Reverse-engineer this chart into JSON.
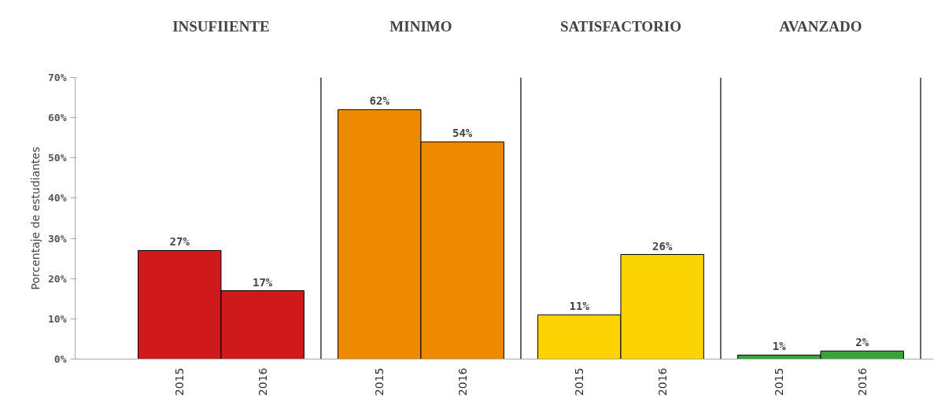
{
  "chart_data": {
    "type": "bar",
    "ylabel": "Porcentaje de estudiantes",
    "categories": [
      "2015",
      "2016",
      "2015",
      "2016",
      "2015",
      "2016",
      "2015",
      "2016"
    ],
    "values": [
      27,
      17,
      62,
      54,
      11,
      26,
      1,
      2
    ],
    "colors": [
      "#d0191a",
      "#d0191a",
      "#ee8a00",
      "#ee8a00",
      "#fcd303",
      "#fcd303",
      "#3aa23c",
      "#3aa23c"
    ],
    "value_labels": [
      "27%",
      "17%",
      "62%",
      "54%",
      "11%",
      "26%",
      "1%",
      "2%"
    ],
    "annotations": [
      "INSUFIIENTE",
      "MINIMO",
      "SATISFACTORIO",
      "AVANZADO"
    ],
    "ylim": [
      0,
      70
    ],
    "yticks": [
      {
        "value": 0,
        "label": "0%"
      },
      {
        "value": 10,
        "label": "10%"
      },
      {
        "value": 20,
        "label": "20%"
      },
      {
        "value": 30,
        "label": "30%"
      },
      {
        "value": 40,
        "label": "40%"
      },
      {
        "value": 50,
        "label": "50%"
      },
      {
        "value": 60,
        "label": "60%"
      },
      {
        "value": 70,
        "label": "70%"
      }
    ],
    "grid": false
  }
}
